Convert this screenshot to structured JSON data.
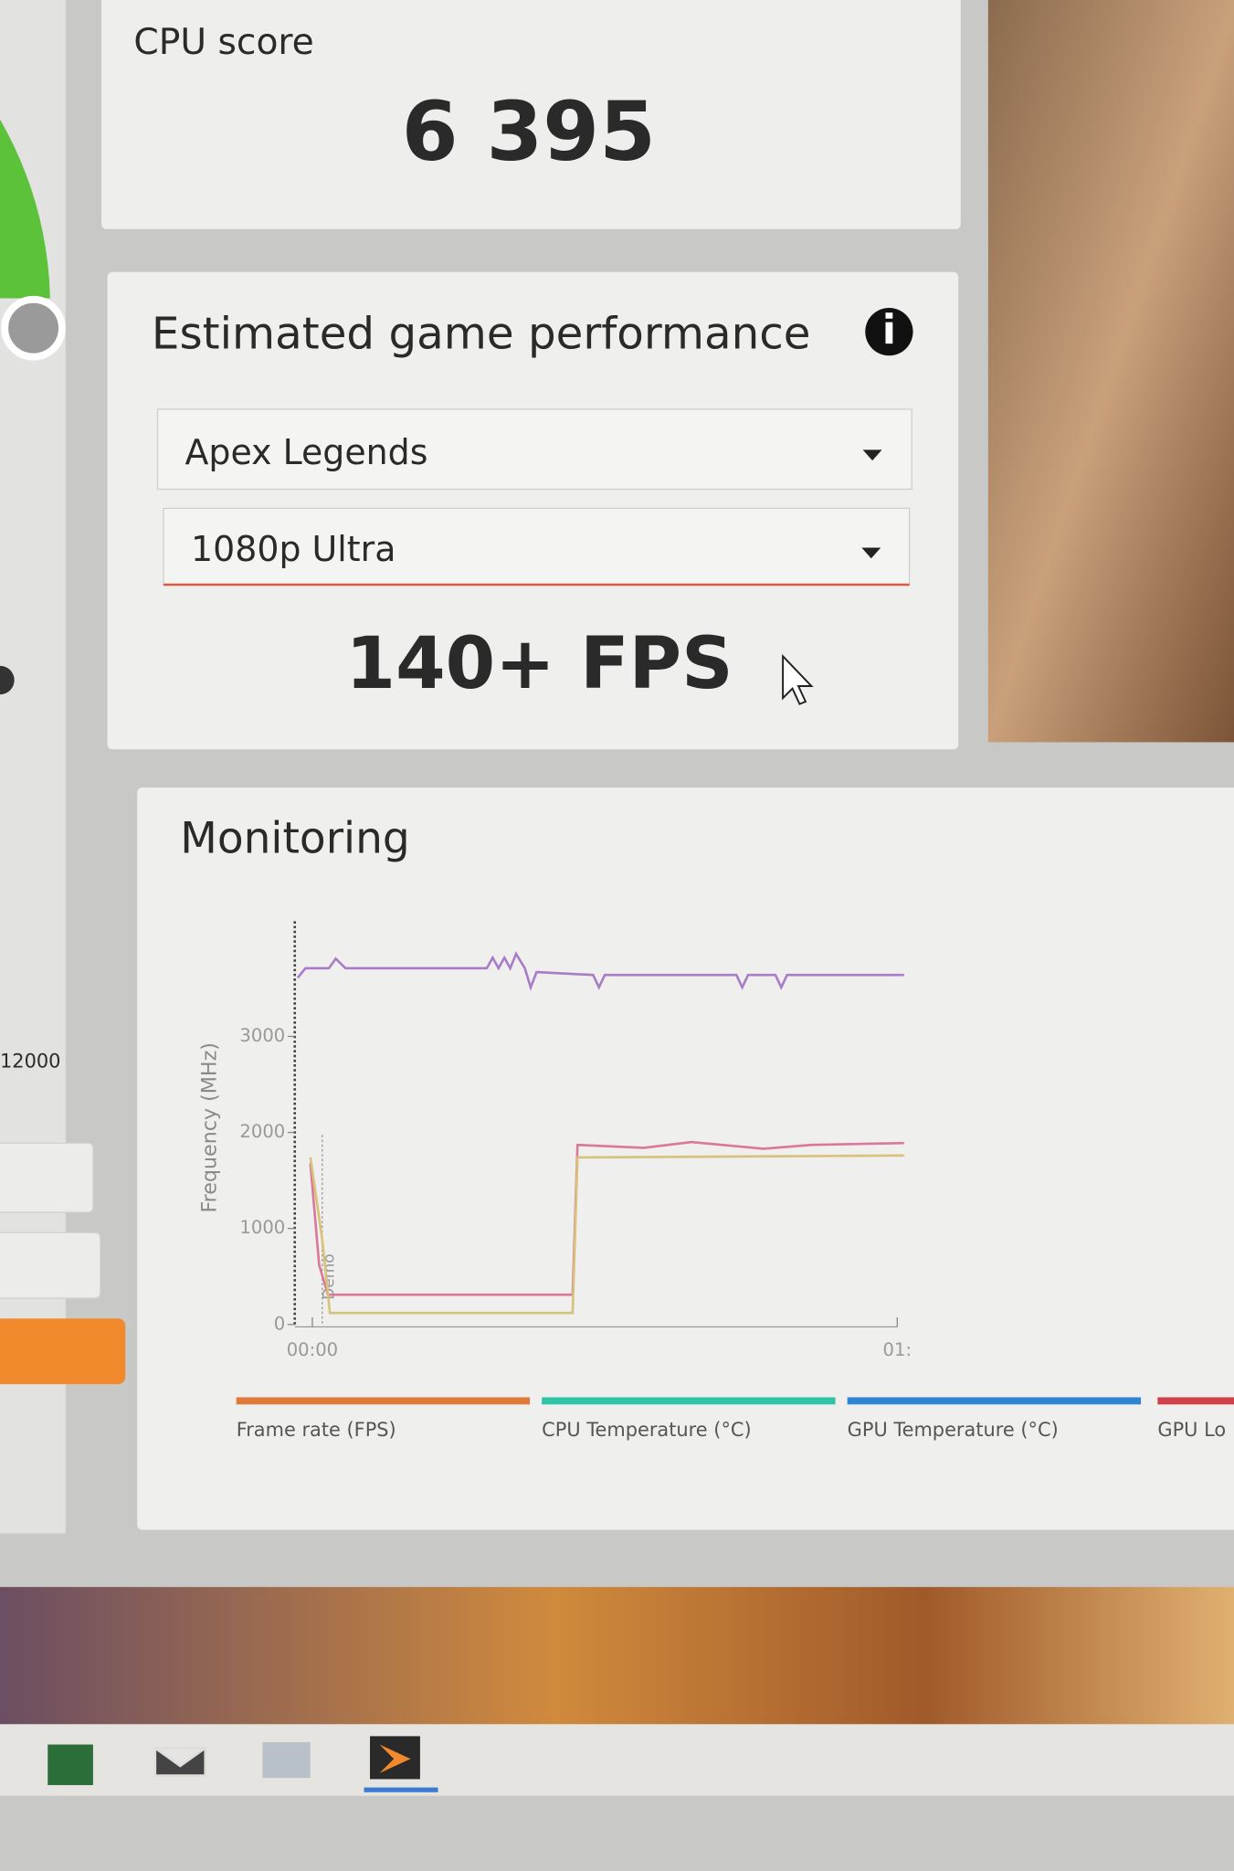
{
  "cpu_score": {
    "label": "CPU score",
    "value": "6 395"
  },
  "game_performance": {
    "title": "Estimated game performance",
    "game": "Apex Legends",
    "preset": "1080p Ultra",
    "result": "140+ FPS"
  },
  "left_panel": {
    "axis_label": "12000"
  },
  "monitoring": {
    "title": "Monitoring"
  },
  "chart_data": {
    "type": "line",
    "ylabel": "Frequency (MHz)",
    "annotation": "Demo",
    "xlim": [
      -1.8,
      61
    ],
    "ylim": [
      0,
      4200
    ],
    "yticks": [
      0,
      1000,
      2000,
      3000
    ],
    "xticks": [
      {
        "value": 0,
        "label": "00:00"
      },
      {
        "value": 60,
        "label": "01:"
      }
    ],
    "series": [
      {
        "color": "#a97cc8",
        "x": [
          -1.5,
          -0.7,
          1.7,
          2.4,
          3.4,
          17.9,
          18.5,
          19.1,
          19.7,
          20.3,
          20.9,
          21.8,
          22.4,
          23.0,
          28.8,
          29.4,
          30.0,
          43.5,
          44.1,
          44.7,
          47.5,
          48.1,
          48.7,
          60.7
        ],
        "values": [
          3610,
          3710,
          3710,
          3810,
          3710,
          3710,
          3820,
          3710,
          3820,
          3710,
          3860,
          3710,
          3510,
          3670,
          3640,
          3510,
          3640,
          3640,
          3510,
          3640,
          3640,
          3510,
          3640,
          3640
        ]
      },
      {
        "color": "#d9789a",
        "x": [
          -0.2,
          0.7,
          1.6,
          26.7,
          27.2,
          34.0,
          38.9,
          46.3,
          51.2,
          60.7
        ],
        "values": [
          1680,
          620,
          310,
          310,
          1870,
          1840,
          1900,
          1830,
          1870,
          1890
        ]
      },
      {
        "color": "#d8c27a",
        "x": [
          -0.2,
          1.0,
          1.8,
          26.7,
          27.2,
          60.7
        ],
        "values": [
          1740,
          900,
          120,
          120,
          1740,
          1760
        ]
      }
    ],
    "legend": [
      {
        "label": "Frame rate (FPS)",
        "color": "#e07a3a"
      },
      {
        "label": "CPU Temperature (°C)",
        "color": "#2fc4a8"
      },
      {
        "label": "GPU Temperature (°C)",
        "color": "#2f86d0"
      },
      {
        "label": "GPU Lo",
        "color": "#d0404a"
      }
    ]
  }
}
